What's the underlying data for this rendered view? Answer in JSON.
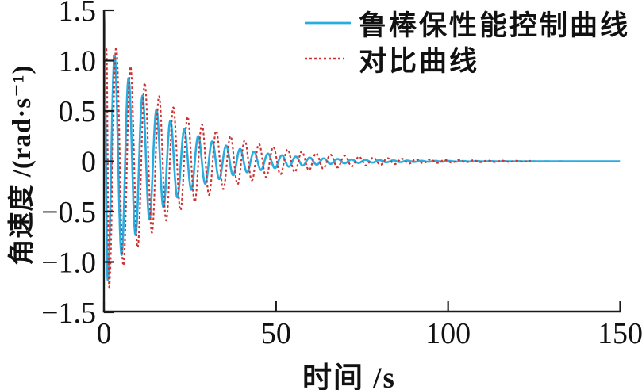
{
  "figure": {
    "background": "#ffffff",
    "axis_color": "#1a1a1a",
    "text_color": "#111111"
  },
  "chart_data": {
    "type": "line",
    "title": "",
    "xlabel": "时间 /s",
    "ylabel": "角速度 /(rad·s⁻¹)",
    "xlim": [
      0,
      150
    ],
    "ylim": [
      -1.5,
      1.5
    ],
    "xticks": [
      0,
      50,
      100,
      150
    ],
    "xtick_labels": [
      "0",
      "50",
      "100",
      "150"
    ],
    "yticks": [
      1.5,
      1.0,
      0.5,
      0,
      -0.5,
      -1.0,
      -1.5
    ],
    "ytick_labels": [
      "1.5",
      "1.0",
      "0.5",
      "0",
      "−0.5",
      "−1.0",
      "−1.5"
    ],
    "grid": false,
    "legend_position": "upper right inside, no box",
    "series": [
      {
        "name": "鲁棒保性能控制曲线",
        "color": "#29acdf",
        "line_style": "solid",
        "line_width": 2.6,
        "model": "damped_oscillation",
        "start": {
          "t": 0,
          "y": 1.5
        },
        "first_min": {
          "t": 1.1,
          "y": -1.18
        },
        "period_s": 4.05,
        "envelope_amplitude": 1.18,
        "decay_tau_s": 17,
        "settles_to": 0,
        "t_end": 150
      },
      {
        "name": "对比曲线",
        "color": "#cb3333",
        "line_style": "dashed",
        "line_width": 2.1,
        "dash": [
          3,
          3
        ],
        "model": "damped_oscillation",
        "start": {
          "t": 0.7,
          "y": 1.12
        },
        "first_min": {
          "t": 1.5,
          "y": -1.25
        },
        "period_s": 4.15,
        "envelope_amplitude": 1.25,
        "decay_tau_s": 22,
        "settles_to": 0,
        "t_end": 124
      }
    ]
  }
}
